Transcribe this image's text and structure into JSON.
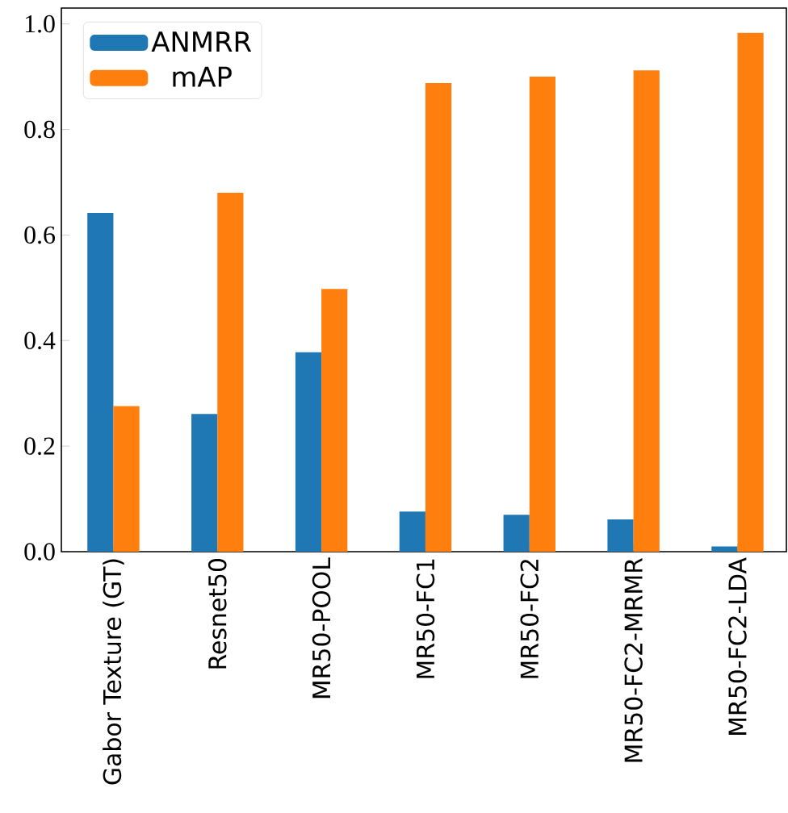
{
  "chart_data": {
    "type": "bar",
    "categories": [
      "Gabor Texture (GT)",
      "Resnet50",
      "MR50-POOL",
      "MR50-FC1",
      "MR50-FC2",
      "MR50-FC2-MRMR",
      "MR50-FC2-LDA"
    ],
    "series": [
      {
        "name": "ANMRR",
        "color": "#1f77b4",
        "values": [
          0.642,
          0.261,
          0.378,
          0.076,
          0.07,
          0.061,
          0.01
        ]
      },
      {
        "name": "mAP",
        "color": "#ff7f0e",
        "values": [
          0.276,
          0.68,
          0.498,
          0.888,
          0.9,
          0.912,
          0.983
        ]
      }
    ],
    "ylim": [
      0,
      1.03
    ],
    "yticks": [
      {
        "value": 0,
        "label": "0.0"
      },
      {
        "value": 0.2,
        "label": "0.2"
      },
      {
        "value": 0.4,
        "label": "0.4"
      },
      {
        "value": 0.6,
        "label": "0.6"
      },
      {
        "value": 0.8,
        "label": "0.8"
      },
      {
        "value": 1.0,
        "label": "1.0"
      }
    ],
    "legend": "top left",
    "grid": false
  }
}
